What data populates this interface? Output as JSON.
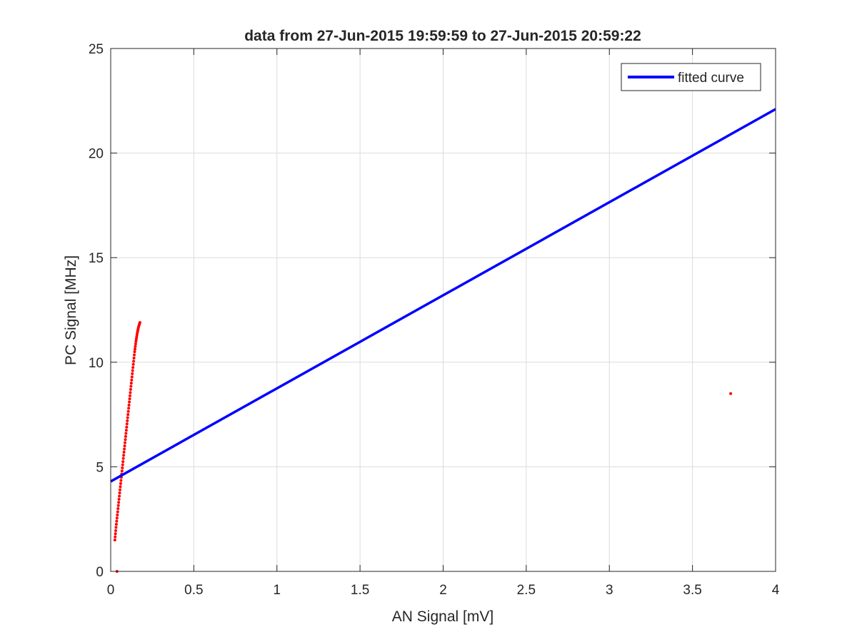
{
  "chart_data": {
    "type": "scatter",
    "title": "data from 27-Jun-2015 19:59:59 to 27-Jun-2015 20:59:22",
    "xlabel": "AN Signal [mV]",
    "ylabel": "PC Signal [MHz]",
    "xlim": [
      0,
      4
    ],
    "ylim": [
      0,
      25
    ],
    "xticks": [
      0,
      0.5,
      1,
      1.5,
      2,
      2.5,
      3,
      3.5,
      4
    ],
    "xtick_labels": [
      "0",
      "0.5",
      "1",
      "1.5",
      "2",
      "2.5",
      "3",
      "3.5",
      "4"
    ],
    "yticks": [
      0,
      5,
      10,
      15,
      20,
      25
    ],
    "ytick_labels": [
      "0",
      "5",
      "10",
      "15",
      "20",
      "25"
    ],
    "grid": true,
    "legend_position": "top-right",
    "series": [
      {
        "name": "",
        "kind": "points",
        "color": "#ff0000",
        "x": [
          0.025,
          0.032,
          0.04,
          0.048,
          0.056,
          0.064,
          0.072,
          0.08,
          0.088,
          0.096,
          0.104,
          0.112,
          0.12,
          0.128,
          0.136,
          0.144,
          0.152,
          0.16,
          0.168,
          0.176,
          0.038,
          3.73
        ],
        "y": [
          1.5,
          2.1,
          2.7,
          3.3,
          3.9,
          4.5,
          5.1,
          5.7,
          6.3,
          6.9,
          7.5,
          8.1,
          8.7,
          9.3,
          9.9,
          10.5,
          11.0,
          11.4,
          11.7,
          11.9,
          0.0,
          8.5
        ]
      },
      {
        "name": "fitted curve",
        "kind": "line",
        "color": "#0000ff",
        "x": [
          0,
          4
        ],
        "y": [
          4.3,
          22.1
        ]
      }
    ],
    "legend": [
      "fitted curve"
    ]
  }
}
